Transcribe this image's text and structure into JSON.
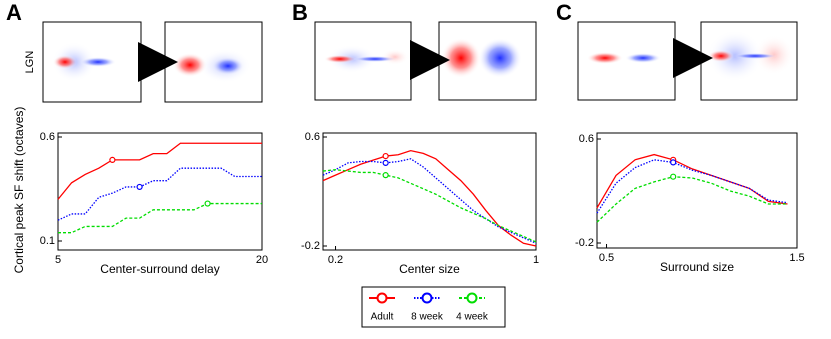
{
  "panel_labels": [
    "A",
    "B",
    "C"
  ],
  "lgn_label": "LGN",
  "chart_data": [
    {
      "type": "line",
      "ylabel": "Cortical peak SF shift (octaves)",
      "xlabel": "Center-surround delay",
      "x": [
        5,
        6,
        7,
        8,
        9,
        10,
        11,
        12,
        13,
        14,
        15,
        16,
        17,
        18,
        19,
        20
      ],
      "xlim": [
        5,
        20
      ],
      "xticks": [
        5,
        20
      ],
      "ylim": [
        0.1,
        0.6
      ],
      "yticks": [
        0.1,
        0.6
      ],
      "series": [
        {
          "name": "Adult",
          "color": "#ff0000",
          "style": "solid",
          "marker_x": 9,
          "values": [
            0.3,
            0.38,
            0.42,
            0.45,
            0.49,
            0.49,
            0.49,
            0.52,
            0.52,
            0.57,
            0.57,
            0.57,
            0.57,
            0.57,
            0.57,
            0.57
          ]
        },
        {
          "name": "8 week",
          "color": "#0000ff",
          "style": "dotted",
          "marker_x": 11,
          "values": [
            0.2,
            0.23,
            0.23,
            0.31,
            0.33,
            0.36,
            0.36,
            0.39,
            0.39,
            0.45,
            0.45,
            0.45,
            0.45,
            0.41,
            0.41,
            0.41
          ]
        },
        {
          "name": "4 week",
          "color": "#00dd00",
          "style": "dashed",
          "marker_x": 16,
          "values": [
            0.14,
            0.14,
            0.17,
            0.17,
            0.17,
            0.21,
            0.21,
            0.25,
            0.25,
            0.25,
            0.25,
            0.28,
            0.28,
            0.28,
            0.28,
            0.28
          ]
        }
      ]
    },
    {
      "type": "line",
      "xlabel": "Center size",
      "x": [
        0.15,
        0.2,
        0.25,
        0.3,
        0.35,
        0.4,
        0.45,
        0.5,
        0.55,
        0.6,
        0.65,
        0.7,
        0.75,
        0.8,
        0.85,
        0.9,
        0.95,
        1
      ],
      "xlim": [
        0.15,
        1
      ],
      "xticks": [
        0.2,
        1
      ],
      "ylim": [
        -0.2,
        0.6
      ],
      "yticks": [
        -0.2,
        0.6
      ],
      "series": [
        {
          "color": "#ff0000",
          "style": "solid",
          "marker_x": 0.4,
          "values": [
            0.28,
            0.32,
            0.36,
            0.4,
            0.43,
            0.46,
            0.47,
            0.5,
            0.48,
            0.44,
            0.36,
            0.28,
            0.18,
            0.06,
            -0.05,
            -0.12,
            -0.18,
            -0.2
          ]
        },
        {
          "color": "#0000ff",
          "style": "dotted",
          "marker_x": 0.4,
          "values": [
            0.32,
            0.36,
            0.41,
            0.42,
            0.42,
            0.41,
            0.42,
            0.44,
            0.38,
            0.3,
            0.22,
            0.14,
            0.06,
            0.0,
            -0.06,
            -0.1,
            -0.14,
            -0.18
          ]
        },
        {
          "color": "#00dd00",
          "style": "dashed",
          "marker_x": 0.4,
          "values": [
            0.35,
            0.36,
            0.35,
            0.34,
            0.34,
            0.32,
            0.3,
            0.26,
            0.22,
            0.18,
            0.13,
            0.08,
            0.04,
            0.0,
            -0.05,
            -0.09,
            -0.13,
            -0.17
          ]
        }
      ]
    },
    {
      "type": "line",
      "xlabel": "Surround size",
      "x": [
        0.45,
        0.55,
        0.65,
        0.75,
        0.85,
        0.95,
        1.05,
        1.15,
        1.25,
        1.35,
        1.45
      ],
      "xlim": [
        0.45,
        1.5
      ],
      "xticks": [
        0.5,
        1.5
      ],
      "ylim": [
        -0.2,
        0.6
      ],
      "yticks": [
        -0.2,
        0.6
      ],
      "series": [
        {
          "color": "#ff0000",
          "style": "solid",
          "marker_x": 0.85,
          "values": [
            0.07,
            0.32,
            0.44,
            0.48,
            0.44,
            0.37,
            0.32,
            0.27,
            0.22,
            0.12,
            0.1
          ]
        },
        {
          "color": "#0000ff",
          "style": "dotted",
          "marker_x": 0.85,
          "values": [
            0.03,
            0.26,
            0.38,
            0.44,
            0.42,
            0.36,
            0.32,
            0.27,
            0.22,
            0.13,
            0.11
          ]
        },
        {
          "color": "#00dd00",
          "style": "dashed",
          "marker_x": 0.85,
          "values": [
            -0.04,
            0.1,
            0.22,
            0.27,
            0.31,
            0.3,
            0.26,
            0.2,
            0.16,
            0.1,
            0.1
          ]
        }
      ]
    }
  ]
}
